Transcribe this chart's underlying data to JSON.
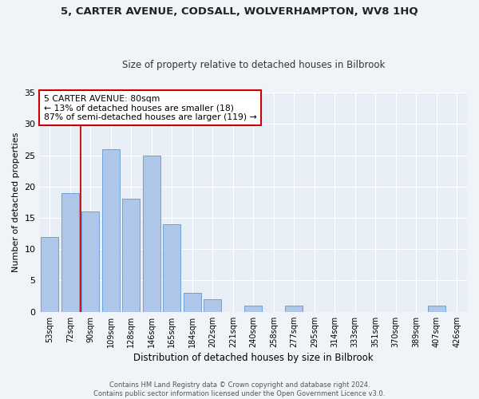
{
  "title1": "5, CARTER AVENUE, CODSALL, WOLVERHAMPTON, WV8 1HQ",
  "title2": "Size of property relative to detached houses in Bilbrook",
  "xlabel": "Distribution of detached houses by size in Bilbrook",
  "ylabel": "Number of detached properties",
  "categories": [
    "53sqm",
    "72sqm",
    "90sqm",
    "109sqm",
    "128sqm",
    "146sqm",
    "165sqm",
    "184sqm",
    "202sqm",
    "221sqm",
    "240sqm",
    "258sqm",
    "277sqm",
    "295sqm",
    "314sqm",
    "333sqm",
    "351sqm",
    "370sqm",
    "389sqm",
    "407sqm",
    "426sqm"
  ],
  "values": [
    12,
    19,
    16,
    26,
    18,
    25,
    14,
    3,
    2,
    0,
    1,
    0,
    1,
    0,
    0,
    0,
    0,
    0,
    0,
    1,
    0
  ],
  "bar_color": "#aec6e8",
  "bar_edgecolor": "#5b9bd5",
  "vline_x_index": 1,
  "vline_color": "#cc0000",
  "annotation_text": "5 CARTER AVENUE: 80sqm\n← 13% of detached houses are smaller (18)\n87% of semi-detached houses are larger (119) →",
  "annotation_box_color": "#ffffff",
  "annotation_box_edgecolor": "#cc0000",
  "ylim": [
    0,
    35
  ],
  "yticks": [
    0,
    5,
    10,
    15,
    20,
    25,
    30,
    35
  ],
  "footer1": "Contains HM Land Registry data © Crown copyright and database right 2024.",
  "footer2": "Contains public sector information licensed under the Open Government Licence v3.0.",
  "bg_color": "#e8eef5",
  "fig_color": "#f0f4f8",
  "grid_color": "#ffffff"
}
